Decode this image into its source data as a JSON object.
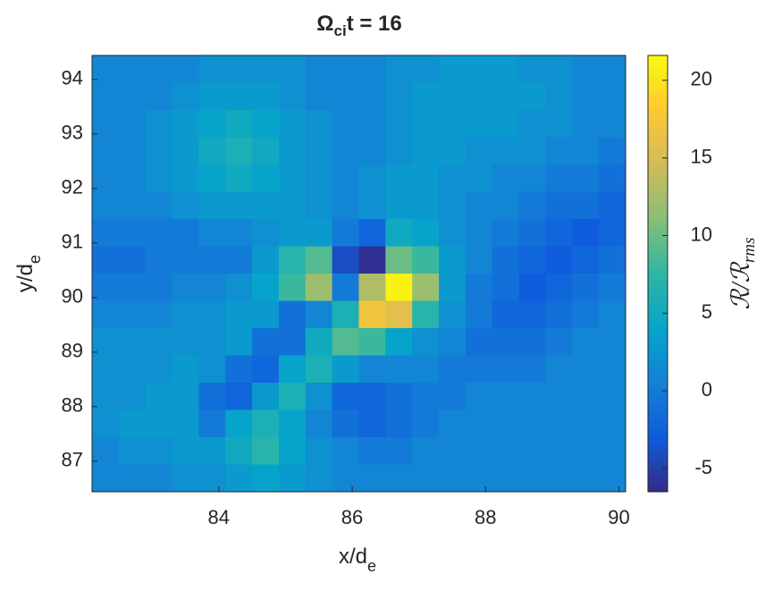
{
  "chart_data": {
    "type": "heatmap",
    "title": {
      "base": "Ω",
      "sub": "ci",
      "rest": "t = 16"
    },
    "x_label": {
      "base": "x/d",
      "sub": "e"
    },
    "y_label": {
      "base": "y/d",
      "sub": "e"
    },
    "colorbar_label": {
      "base": "ℛ/ℛ",
      "sub": "rms"
    },
    "x": [
      82.3,
      82.7,
      83.1,
      83.5,
      83.9,
      84.3,
      84.7,
      85.1,
      85.5,
      85.9,
      86.3,
      86.7,
      87.1,
      87.5,
      87.9,
      88.3,
      88.7,
      89.1,
      89.5,
      89.9
    ],
    "y": [
      94.19,
      93.69,
      93.19,
      92.69,
      92.19,
      91.69,
      91.19,
      90.69,
      90.19,
      89.69,
      89.19,
      88.69,
      88.19,
      87.69,
      87.19,
      86.69
    ],
    "z": [
      [
        1,
        1,
        1,
        1,
        2,
        2,
        2,
        2,
        1,
        1,
        1,
        2,
        2,
        3,
        3,
        3,
        2,
        2,
        1,
        1
      ],
      [
        1,
        1,
        1,
        2,
        3,
        3,
        3,
        2,
        1,
        1,
        1,
        2,
        3,
        3,
        3,
        3,
        3,
        2,
        1,
        1
      ],
      [
        1,
        1,
        2,
        3,
        4,
        5,
        4,
        3,
        2,
        1,
        1,
        2,
        3,
        3,
        3,
        3,
        2,
        2,
        1,
        1
      ],
      [
        1,
        1,
        2,
        3,
        5,
        6,
        5,
        3,
        2,
        1,
        1,
        2,
        3,
        3,
        2,
        2,
        2,
        1,
        1,
        0
      ],
      [
        1,
        1,
        2,
        3,
        4,
        5,
        4,
        3,
        2,
        1,
        2,
        3,
        3,
        2,
        2,
        1,
        1,
        0,
        0,
        -1
      ],
      [
        1,
        1,
        1,
        2,
        3,
        3,
        3,
        3,
        2,
        1,
        2,
        3,
        3,
        2,
        1,
        1,
        0,
        -1,
        -1,
        -2
      ],
      [
        0,
        0,
        0,
        0,
        1,
        1,
        2,
        3,
        3,
        0,
        -2,
        5,
        4,
        2,
        1,
        0,
        -1,
        -2,
        -3,
        -2
      ],
      [
        -1,
        -1,
        0,
        0,
        0,
        0,
        3,
        7,
        9,
        -4,
        -6,
        10,
        8,
        3,
        1,
        -1,
        -2,
        -3,
        -2,
        -1
      ],
      [
        0,
        0,
        0,
        1,
        1,
        2,
        4,
        8,
        12,
        0,
        13,
        21,
        12,
        3,
        0,
        -1,
        -3,
        -2,
        -1,
        0
      ],
      [
        1,
        1,
        1,
        2,
        2,
        3,
        3,
        -1,
        1,
        6,
        17,
        16,
        7,
        2,
        0,
        -2,
        -2,
        -1,
        0,
        1
      ],
      [
        2,
        2,
        2,
        2,
        2,
        3,
        -1,
        -1,
        5,
        9,
        8,
        4,
        2,
        1,
        -1,
        -1,
        -1,
        0,
        1,
        1
      ],
      [
        2,
        2,
        2,
        3,
        2,
        -1,
        -2,
        4,
        6,
        3,
        1,
        1,
        1,
        0,
        0,
        0,
        0,
        1,
        1,
        1
      ],
      [
        2,
        2,
        3,
        3,
        -1,
        -2,
        3,
        6,
        2,
        -2,
        -2,
        -1,
        0,
        0,
        1,
        1,
        1,
        1,
        1,
        1
      ],
      [
        2,
        3,
        3,
        3,
        0,
        4,
        6,
        4,
        1,
        -1,
        -2,
        -1,
        0,
        1,
        1,
        1,
        1,
        1,
        1,
        1
      ],
      [
        1,
        2,
        2,
        3,
        3,
        5,
        7,
        4,
        2,
        1,
        0,
        0,
        1,
        1,
        1,
        1,
        1,
        1,
        1,
        1
      ],
      [
        1,
        1,
        1,
        2,
        2,
        3,
        4,
        3,
        2,
        1,
        1,
        1,
        1,
        1,
        1,
        1,
        1,
        1,
        1,
        1
      ]
    ],
    "xlim": [
      82.1,
      90.1
    ],
    "ylim": [
      86.44,
      94.44
    ],
    "xticks": [
      84,
      86,
      88,
      90
    ],
    "yticks": [
      87,
      88,
      89,
      90,
      91,
      92,
      93,
      94
    ],
    "clim": [
      -6.5,
      21.6
    ],
    "cticks": [
      -5,
      0,
      5,
      10,
      15,
      20
    ],
    "colormap": [
      "#352a87",
      "#0f5cdd",
      "#1481d6",
      "#06a4ca",
      "#2eb7a4",
      "#87bf77",
      "#d1bb59",
      "#fec832",
      "#f9fb0e"
    ]
  }
}
